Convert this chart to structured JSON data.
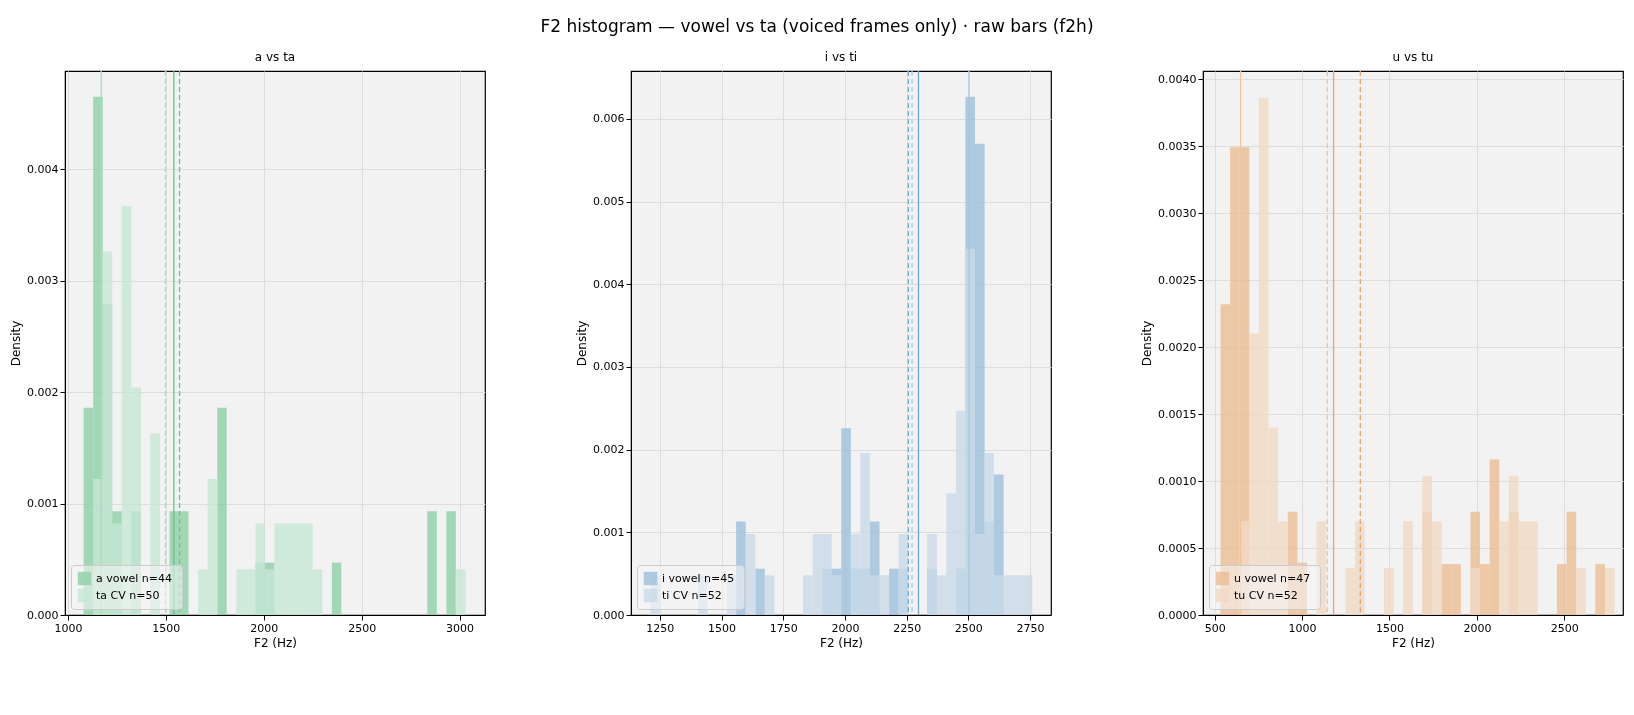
{
  "chart_data": [
    {
      "type": "histogram",
      "title": "a vs ta",
      "xlabel": "F2 (Hz)",
      "ylabel": "Density",
      "annotations": [
        "F2 histogram — vowel vs ta (voiced frames only) · raw bars (f2h)"
      ],
      "xlim": [
        985,
        3130
      ],
      "xticks": [
        1000,
        1500,
        2000,
        2500,
        3000
      ],
      "ylim": [
        0,
        0.00488
      ],
      "yticks": [
        {
          "value": 0,
          "label": "0.000"
        },
        {
          "value": 0.001,
          "label": "0.001"
        },
        {
          "value": 0.002,
          "label": "0.002"
        },
        {
          "value": 0.003,
          "label": "0.003"
        },
        {
          "value": 0.004,
          "label": "0.004"
        }
      ],
      "grid": true,
      "legend": "bottom left",
      "bins": [
        1080,
        1129,
        1178,
        1226,
        1275,
        1324,
        1373,
        1421,
        1470,
        1519,
        1568,
        1616,
        1665,
        1714,
        1763,
        1811,
        1860,
        1909,
        1958,
        2006,
        2055,
        2104,
        2153,
        2201,
        2250,
        2299,
        2348,
        2396,
        2445,
        2494,
        2543,
        2591,
        2640,
        2689,
        2738,
        2786,
        2835,
        2884,
        2933,
        2981,
        3030
      ],
      "series": [
        {
          "name": "a vowel  n=44",
          "color": "#8dcfa6",
          "values": [
            0.00186,
            0.00465,
            0.00279,
            0.00093,
            0,
            0.00093,
            0,
            0,
            0,
            0.00093,
            0.00093,
            0,
            0,
            0,
            0.00186,
            0,
            0,
            0,
            0.00047,
            0.00047,
            0,
            0,
            0,
            0,
            0,
            0,
            0.00047,
            0,
            0,
            0,
            0,
            0,
            0,
            0,
            0,
            0,
            0.00093,
            0,
            0.00093,
            0
          ]
        },
        {
          "name": "ta CV  n=50",
          "color": "#c6e6d4",
          "values": [
            0,
            0.00122,
            0.00326,
            0.00082,
            0.00367,
            0.00204,
            0,
            0.00163,
            0,
            0,
            0,
            0,
            0.00041,
            0.00122,
            0,
            0,
            0.00041,
            0.00041,
            0.00082,
            0.00041,
            0.00082,
            0.00082,
            0.00082,
            0.00082,
            0.00041,
            0,
            0,
            0,
            0,
            0,
            0,
            0,
            0,
            0,
            0,
            0,
            0,
            0,
            0,
            0.00041
          ]
        }
      ],
      "ref_lines": [
        {
          "axis": "x",
          "value": 1170,
          "color": "#a8dcbd",
          "line_style": "solid"
        },
        {
          "axis": "x",
          "value": 1498,
          "color": "#a8dcbd",
          "line_style": "dashed"
        },
        {
          "axis": "x",
          "value": 1541,
          "color": "#66c28d",
          "line_style": "solid"
        },
        {
          "axis": "x",
          "value": 1570,
          "color": "#66c28d",
          "line_style": "dashed"
        }
      ]
    },
    {
      "type": "histogram",
      "title": "i vs ti",
      "xlabel": "F2 (Hz)",
      "ylabel": "Density",
      "xlim": [
        1133,
        2835
      ],
      "xticks": [
        1250,
        1500,
        1750,
        2000,
        2250,
        2500,
        2750
      ],
      "ylim": [
        0,
        0.00658
      ],
      "yticks": [
        {
          "value": 0,
          "label": "0.000"
        },
        {
          "value": 0.001,
          "label": "0.001"
        },
        {
          "value": 0.002,
          "label": "0.002"
        },
        {
          "value": 0.003,
          "label": "0.003"
        },
        {
          "value": 0.004,
          "label": "0.004"
        },
        {
          "value": 0.005,
          "label": "0.005"
        },
        {
          "value": 0.006,
          "label": "0.006"
        }
      ],
      "grid": true,
      "legend": "bottom left",
      "bins": [
        1211,
        1250,
        1288,
        1327,
        1366,
        1405,
        1443,
        1482,
        1521,
        1559,
        1598,
        1637,
        1675,
        1714,
        1753,
        1792,
        1830,
        1869,
        1908,
        1946,
        1985,
        2024,
        2062,
        2101,
        2140,
        2179,
        2217,
        2256,
        2295,
        2333,
        2372,
        2411,
        2450,
        2488,
        2527,
        2566,
        2604,
        2643,
        2682,
        2720,
        2759
      ],
      "series": [
        {
          "name": "i vowel  n=45",
          "color": "#9bbfdb",
          "values": [
            0,
            0,
            0,
            0,
            0,
            0,
            0,
            0,
            0,
            0.00113,
            0,
            0.00056,
            0,
            0,
            0,
            0,
            0,
            0,
            0.00056,
            0.00056,
            0.00226,
            0.00056,
            0.00056,
            0.00113,
            0,
            0.00056,
            0.00056,
            0,
            0,
            0.00056,
            0,
            0,
            0.00056,
            0.00627,
            0.0057,
            0.00113,
            0.0017,
            0,
            0,
            0
          ]
        },
        {
          "name": "ti CV  n=52",
          "color": "#c9dae7",
          "values": [
            0.00048,
            0,
            0,
            0,
            0,
            0.00048,
            0,
            0,
            0.00048,
            0,
            0.00098,
            0,
            0.00048,
            0,
            0,
            0,
            0.00048,
            0.00098,
            0.00098,
            0.00048,
            0,
            0.00098,
            0.00196,
            0.00048,
            0.00048,
            0,
            0.00098,
            0,
            0,
            0.00098,
            0.00048,
            0.00147,
            0.00247,
            0.00443,
            0.00098,
            0.00196,
            0.00048,
            0.00048,
            0.00048,
            0.00048
          ]
        }
      ],
      "ref_lines": [
        {
          "axis": "x",
          "value": 2257,
          "color": "#6fa8d2",
          "line_style": "dashed"
        },
        {
          "axis": "x",
          "value": 2272,
          "color": "#a9c9e0",
          "line_style": "dashed"
        },
        {
          "axis": "x",
          "value": 2298,
          "color": "#6fa8d2",
          "line_style": "solid"
        },
        {
          "axis": "x",
          "value": 2503,
          "color": "#a9c9e0",
          "line_style": "solid"
        }
      ]
    },
    {
      "type": "histogram",
      "title": "u vs tu",
      "xlabel": "F2 (Hz)",
      "ylabel": "Density",
      "xlim": [
        433,
        2836
      ],
      "xticks": [
        500,
        1000,
        1500,
        2000,
        2500
      ],
      "ylim": [
        0,
        0.00406
      ],
      "yticks": [
        {
          "value": 0,
          "label": "0.0000"
        },
        {
          "value": 0.0005,
          "label": "0.0005"
        },
        {
          "value": 0.001,
          "label": "0.0010"
        },
        {
          "value": 0.0015,
          "label": "0.0015"
        },
        {
          "value": 0.002,
          "label": "0.0020"
        },
        {
          "value": 0.0025,
          "label": "0.0025"
        },
        {
          "value": 0.003,
          "label": "0.0030"
        },
        {
          "value": 0.0035,
          "label": "0.0035"
        },
        {
          "value": 0.004,
          "label": "0.0040"
        }
      ],
      "grid": true,
      "legend": "bottom left",
      "bins": [
        533,
        588,
        643,
        698,
        753,
        808,
        863,
        918,
        973,
        1028,
        1083,
        1138,
        1193,
        1248,
        1303,
        1358,
        1413,
        1468,
        1523,
        1578,
        1633,
        1688,
        1743,
        1798,
        1853,
        1908,
        1963,
        2018,
        2073,
        2128,
        2183,
        2238,
        2293,
        2348,
        2403,
        2458,
        2513,
        2568,
        2623,
        2678,
        2733,
        2788
      ],
      "series": [
        {
          "name": "u vowel  n=47",
          "color": "#ebbd94",
          "values": [
            0.00232,
            0.00349,
            0.00349,
            0,
            0,
            0,
            0,
            0.00077,
            0.00039,
            0,
            0,
            0,
            0,
            0,
            0,
            0,
            0,
            0,
            0,
            0,
            0,
            0.00077,
            0,
            0.00038,
            0.00038,
            0,
            0.00077,
            0.00038,
            0.00116,
            0,
            0.00077,
            0,
            0,
            0,
            0,
            0.00038,
            0.00077,
            0,
            0,
            0.00038,
            0
          ]
        },
        {
          "name": "tu CV  n=52",
          "color": "#f0d9c4",
          "values": [
            0,
            0,
            0.0007,
            0.0021,
            0.00386,
            0.0014,
            0.0007,
            0,
            0,
            0,
            0.0007,
            0,
            0,
            0.00035,
            0.0007,
            0,
            0,
            0.00035,
            0,
            0.0007,
            0,
            0.00104,
            0.0007,
            0,
            0,
            0,
            0.00035,
            0,
            0,
            0.0007,
            0.00104,
            0.0007,
            0.0007,
            0,
            0,
            0,
            0,
            0.00035,
            0,
            0,
            0.00035
          ]
        }
      ],
      "ref_lines": [
        {
          "axis": "x",
          "value": 648,
          "color": "#f0c49c",
          "line_style": "solid"
        },
        {
          "axis": "x",
          "value": 1144,
          "color": "#f0c49c",
          "line_style": "dashed"
        },
        {
          "axis": "x",
          "value": 1180,
          "color": "#e9a46a",
          "line_style": "solid"
        },
        {
          "axis": "x",
          "value": 1333,
          "color": "#e9a46a",
          "line_style": "dashed"
        }
      ]
    }
  ]
}
